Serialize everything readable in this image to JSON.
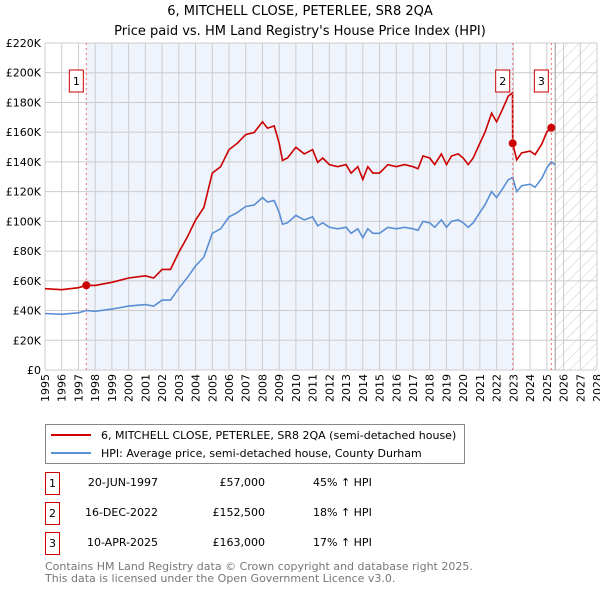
{
  "chart_data": {
    "type": "line",
    "title": "6, MITCHELL CLOSE, PETERLEE, SR8 2QA",
    "subtitle": "Price paid vs. HM Land Registry's House Price Index (HPI)",
    "xlim": [
      1995,
      2028
    ],
    "ylim": [
      0,
      220000
    ],
    "x_ticks": [
      "1995",
      "1996",
      "1997",
      "1998",
      "1999",
      "2000",
      "2001",
      "2002",
      "2003",
      "2004",
      "2005",
      "2006",
      "2007",
      "2008",
      "2009",
      "2010",
      "2011",
      "2012",
      "2013",
      "2014",
      "2015",
      "2016",
      "2017",
      "2018",
      "2019",
      "2020",
      "2021",
      "2022",
      "2023",
      "2024",
      "2025",
      "2026",
      "2027",
      "2028"
    ],
    "y_ticks": [
      {
        "v": 0,
        "label": "£0"
      },
      {
        "v": 20000,
        "label": "£20K"
      },
      {
        "v": 40000,
        "label": "£40K"
      },
      {
        "v": 60000,
        "label": "£60K"
      },
      {
        "v": 80000,
        "label": "£80K"
      },
      {
        "v": 100000,
        "label": "£100K"
      },
      {
        "v": 120000,
        "label": "£120K"
      },
      {
        "v": 140000,
        "label": "£140K"
      },
      {
        "v": 160000,
        "label": "£160K"
      },
      {
        "v": 180000,
        "label": "£180K"
      },
      {
        "v": 200000,
        "label": "£200K"
      },
      {
        "v": 220000,
        "label": "£220K"
      }
    ],
    "grid": true,
    "forecast_from": 2025.5,
    "colors": {
      "property": "#cc0000",
      "hpi": "#5b8fd4",
      "shade": "#eef3fc"
    },
    "series": [
      {
        "name": "6, MITCHELL CLOSE, PETERLEE, SR8 2QA (semi-detached house)",
        "key": "property",
        "x": [
          1995,
          1996,
          1997,
          1997.47,
          1998,
          1999,
          2000,
          2001,
          2001.5,
          2002,
          2002.5,
          2003,
          2003.5,
          2004,
          2004.5,
          2005,
          2005.5,
          2006,
          2006.5,
          2007,
          2007.5,
          2008,
          2008.3,
          2008.7,
          2009,
          2009.2,
          2009.5,
          2010,
          2010.5,
          2011,
          2011.3,
          2011.6,
          2012,
          2012.5,
          2013,
          2013.3,
          2013.7,
          2014,
          2014.3,
          2014.6,
          2015,
          2015.5,
          2016,
          2016.5,
          2017,
          2017.3,
          2017.6,
          2018,
          2018.3,
          2018.7,
          2019,
          2019.3,
          2019.7,
          2020,
          2020.3,
          2020.6,
          2021,
          2021.3,
          2021.7,
          2022,
          2022.3,
          2022.7,
          2022.95,
          2022.96,
          2023.2,
          2023.5,
          2024,
          2024.3,
          2024.7,
          2025,
          2025.27,
          2025.5
        ],
        "y": [
          54700,
          54000,
          55400,
          57000,
          56900,
          59000,
          61900,
          63400,
          61900,
          67700,
          67700,
          79200,
          89300,
          100800,
          109400,
          132500,
          136800,
          148300,
          152600,
          158400,
          159800,
          167000,
          162700,
          164200,
          152600,
          141000,
          142600,
          149800,
          145400,
          148300,
          139700,
          142600,
          138200,
          136800,
          138200,
          132500,
          136800,
          128200,
          136800,
          132500,
          132500,
          138200,
          136800,
          138200,
          136800,
          135400,
          144000,
          142600,
          138200,
          145400,
          138200,
          144000,
          145400,
          142600,
          138200,
          142600,
          152600,
          159800,
          172800,
          167000,
          174200,
          184300,
          186500,
          152500,
          141400,
          146100,
          147300,
          144900,
          152000,
          160200,
          163000,
          162600
        ]
      },
      {
        "name": "HPI: Average price, semi-detached house, County Durham",
        "key": "hpi",
        "x": [
          1995,
          1996,
          1997,
          1997.47,
          1998,
          1999,
          2000,
          2001,
          2001.5,
          2002,
          2002.5,
          2003,
          2003.5,
          2004,
          2004.5,
          2005,
          2005.5,
          2006,
          2006.5,
          2007,
          2007.5,
          2008,
          2008.3,
          2008.7,
          2009,
          2009.2,
          2009.5,
          2010,
          2010.5,
          2011,
          2011.3,
          2011.6,
          2012,
          2012.5,
          2013,
          2013.3,
          2013.7,
          2014,
          2014.3,
          2014.6,
          2015,
          2015.5,
          2016,
          2016.5,
          2017,
          2017.3,
          2017.6,
          2018,
          2018.3,
          2018.7,
          2019,
          2019.3,
          2019.7,
          2020,
          2020.3,
          2020.6,
          2021,
          2021.3,
          2021.7,
          2022,
          2022.3,
          2022.7,
          2022.96,
          2023.2,
          2023.5,
          2024,
          2024.3,
          2024.7,
          2025,
          2025.27,
          2025.5
        ],
        "y": [
          38000,
          37500,
          38500,
          40000,
          39500,
          41000,
          43000,
          44000,
          43000,
          47000,
          47000,
          55000,
          62000,
          70000,
          76000,
          92000,
          95000,
          103000,
          106000,
          110000,
          111000,
          116000,
          113000,
          114000,
          106000,
          98000,
          99000,
          104000,
          101000,
          103000,
          97000,
          99000,
          96000,
          95000,
          96000,
          92000,
          95000,
          89000,
          95000,
          92000,
          92000,
          96000,
          95000,
          96000,
          95000,
          94000,
          100000,
          99000,
          96000,
          101000,
          96000,
          100000,
          101000,
          99000,
          96000,
          99000,
          106000,
          111000,
          120000,
          116000,
          121000,
          128000,
          129500,
          120000,
          124000,
          125000,
          123000,
          129000,
          136000,
          140000,
          138000
        ]
      }
    ],
    "sales": [
      {
        "n": "1",
        "x": 1997.47,
        "y": 57000,
        "date": "20-JUN-1997",
        "price": "£57,000",
        "hpi": "45% ↑ HPI"
      },
      {
        "n": "2",
        "x": 2022.96,
        "y": 152500,
        "date": "16-DEC-2022",
        "price": "£152,500",
        "hpi": "18% ↑ HPI"
      },
      {
        "n": "3",
        "x": 2025.27,
        "y": 163000,
        "date": "10-APR-2025",
        "price": "£163,000",
        "hpi": "17% ↑ HPI"
      }
    ]
  },
  "footer": {
    "line1": "Contains HM Land Registry data © Crown copyright and database right 2025.",
    "line2": "This data is licensed under the Open Government Licence v3.0."
  }
}
